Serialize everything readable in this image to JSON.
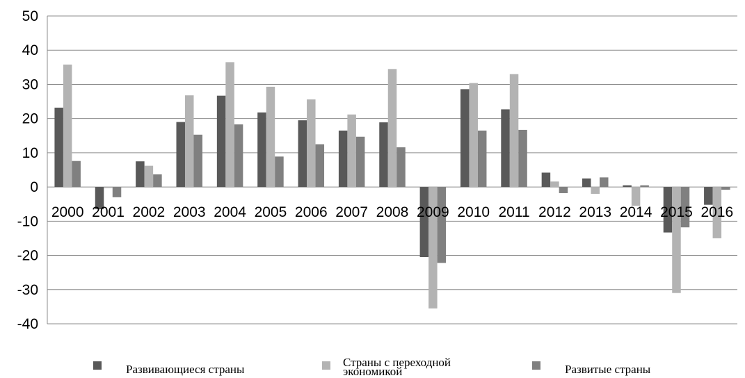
{
  "chart_data": {
    "type": "bar",
    "categories": [
      "2000",
      "2001",
      "2002",
      "2003",
      "2004",
      "2005",
      "2006",
      "2007",
      "2008",
      "2009",
      "2010",
      "2011",
      "2012",
      "2013",
      "2014",
      "2015",
      "2016"
    ],
    "series": [
      {
        "name": "Развивающиеся страны",
        "color": "#595959",
        "values": [
          23.2,
          -6.5,
          7.5,
          19.0,
          26.7,
          21.8,
          19.5,
          16.5,
          18.9,
          -20.5,
          28.6,
          22.7,
          4.2,
          2.5,
          0.5,
          -13.3,
          -5.2
        ]
      },
      {
        "name": "Страны с переходной экономикой",
        "color": "#b3b3b3",
        "values": [
          35.8,
          -0.3,
          6.2,
          26.8,
          36.5,
          29.3,
          25.6,
          21.2,
          34.5,
          -35.5,
          30.4,
          33.0,
          1.6,
          -2.0,
          -5.5,
          -31.0,
          -15.0
        ]
      },
      {
        "name": "Развитые страны",
        "color": "#808080",
        "values": [
          7.6,
          -3.0,
          3.7,
          15.3,
          18.3,
          8.9,
          12.5,
          14.7,
          11.6,
          -22.2,
          16.5,
          16.7,
          -1.8,
          2.8,
          0.5,
          -11.8,
          -0.8
        ]
      }
    ],
    "ylim": [
      -40,
      50
    ],
    "yticks": [
      50,
      40,
      30,
      20,
      10,
      0,
      -10,
      -20,
      -30,
      -40
    ],
    "grid": true,
    "legend": "bottom",
    "title": "",
    "xlabel": "",
    "ylabel": ""
  }
}
